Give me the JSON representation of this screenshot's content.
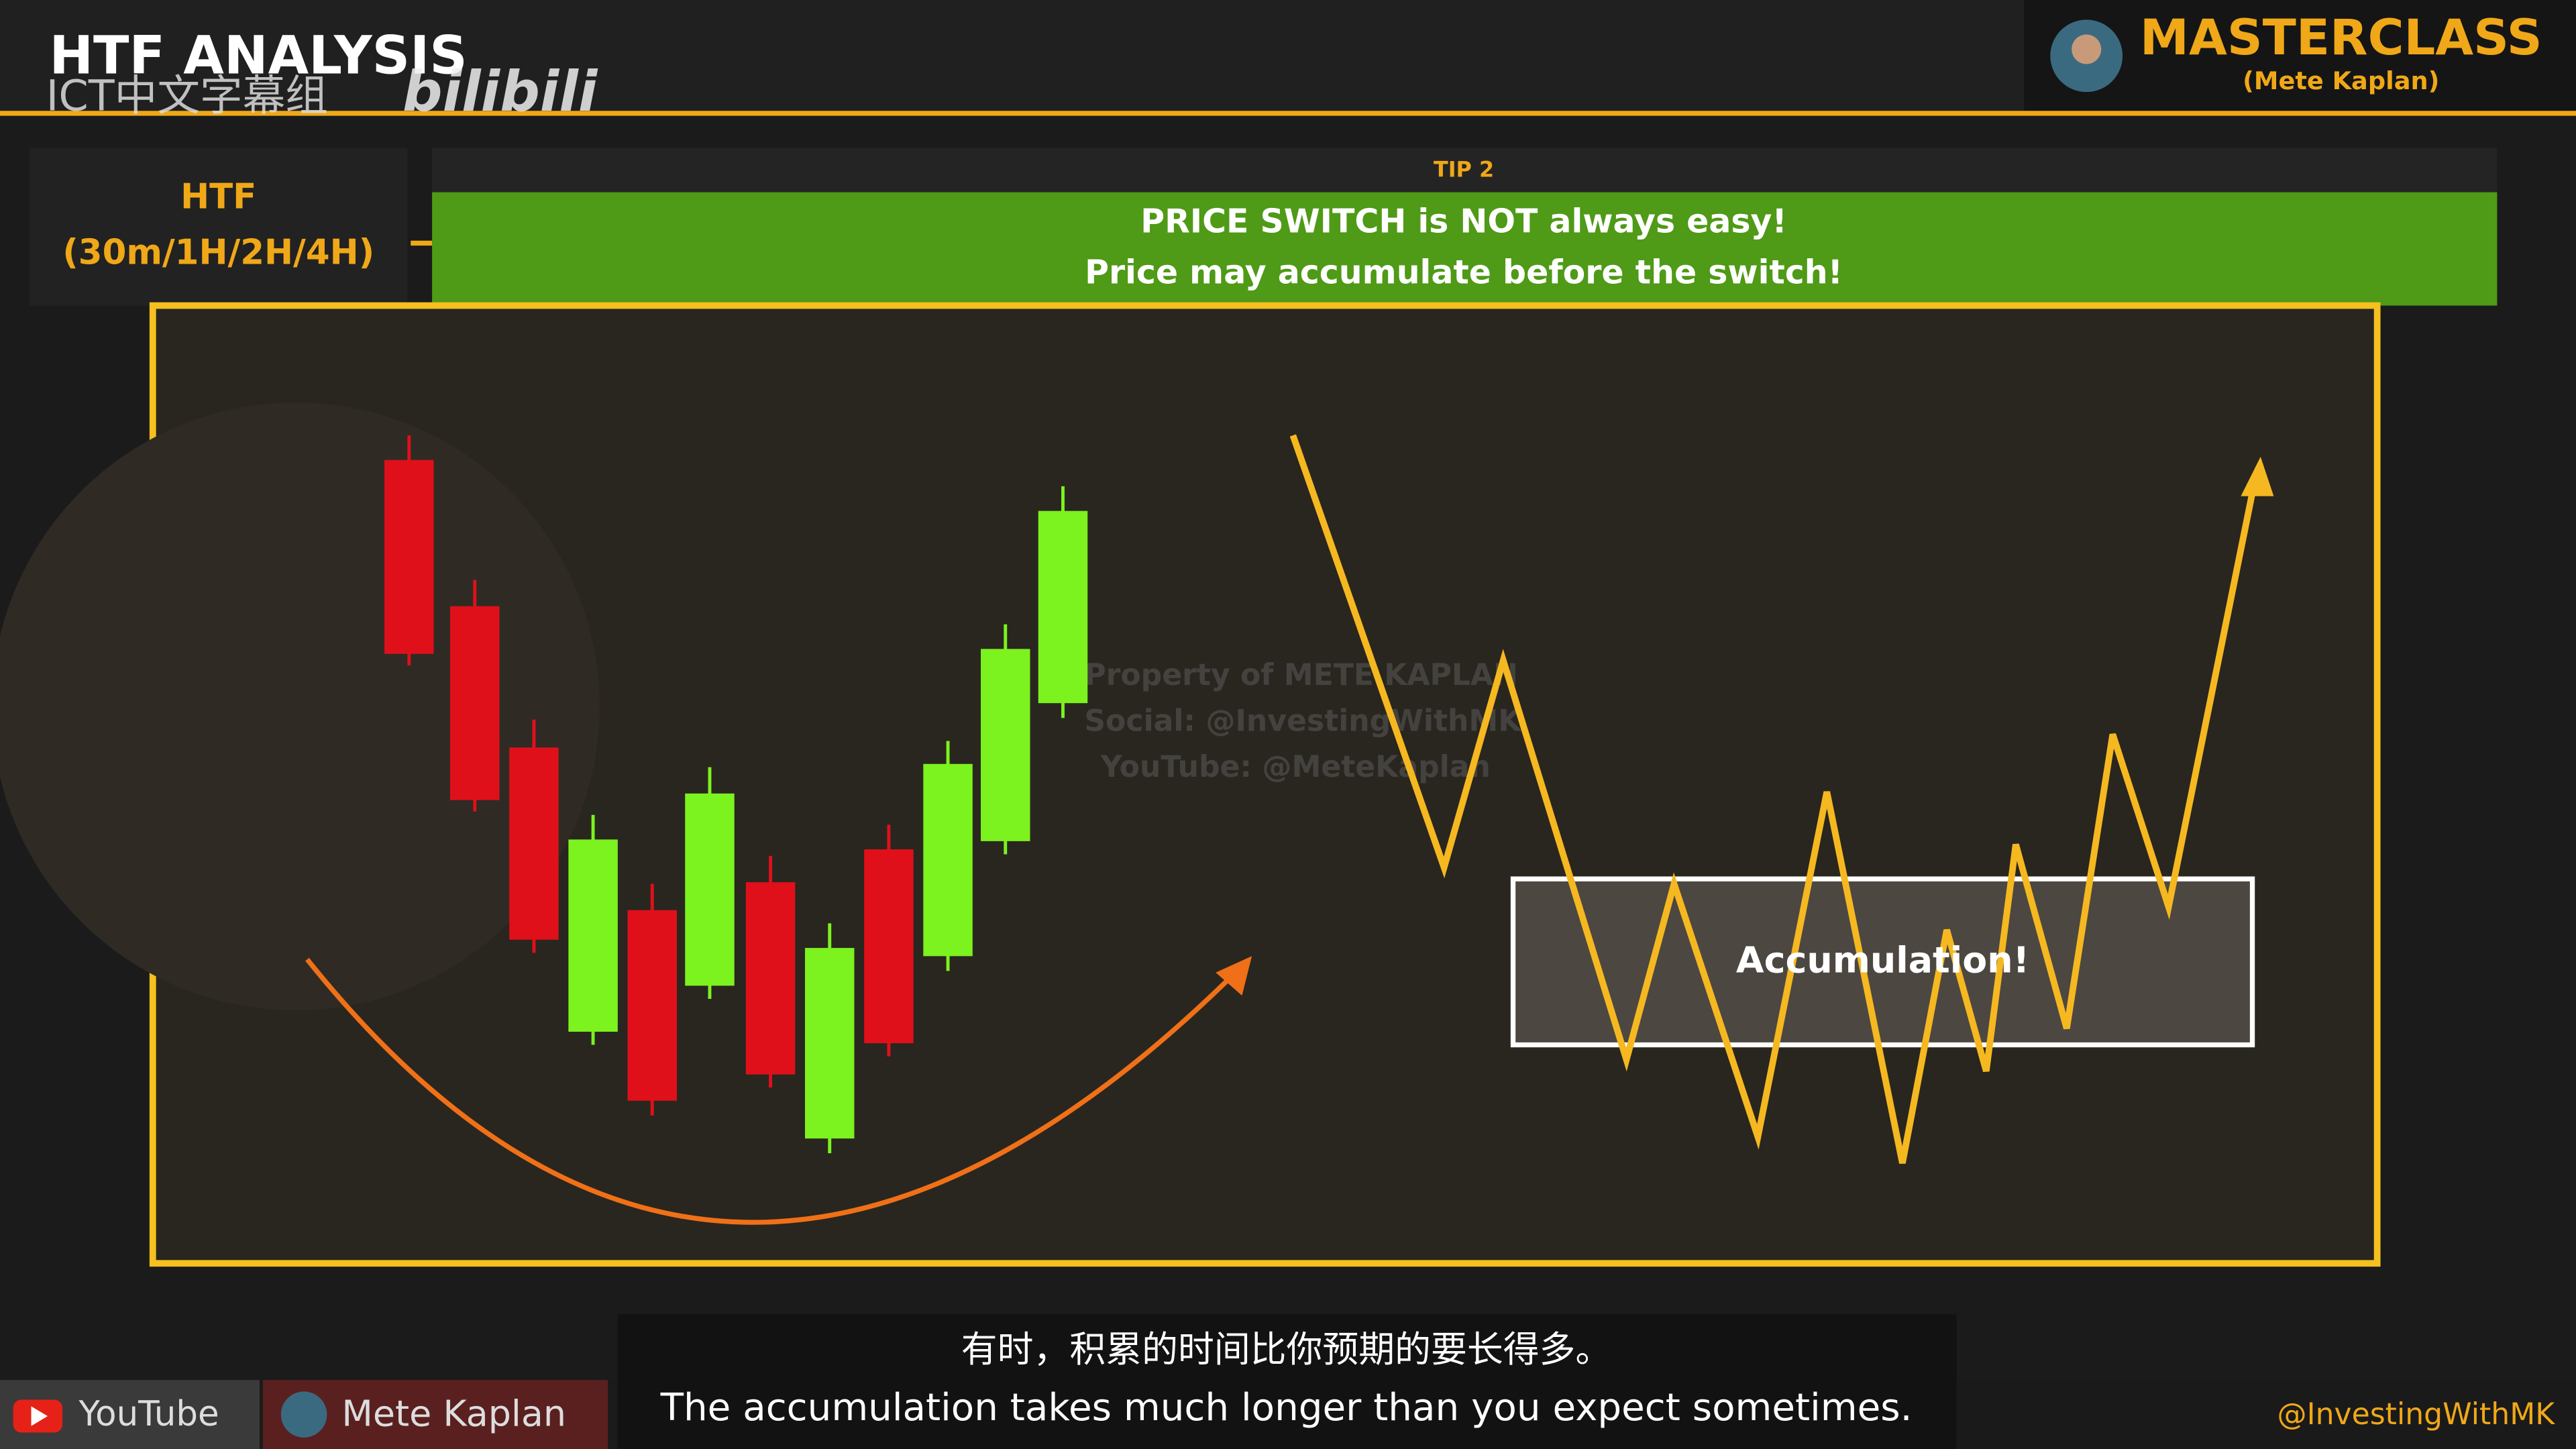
{
  "header": {
    "title": "HTF ANALYSIS",
    "watermark": "ICT中文字幕组",
    "logo": "bilibili",
    "brand": "MASTERCLASS",
    "author": "(Mete Kaplan)"
  },
  "timeframe": {
    "label": "HTF",
    "periods": "(30m/1H/2H/4H)"
  },
  "tip": {
    "label": "TIP 2",
    "line1": "PRICE SWITCH is NOT always easy!",
    "line2": "Price may accumulate before the switch!"
  },
  "chart_watermark": {
    "line1": "Property of METE KAPLAN",
    "line2": "Social: @InvestingWithMK",
    "line3": "YouTube: @MeteKaplan"
  },
  "accumulation_label": "Accumulation!",
  "subtitles": {
    "zh": "有时，积累的时间比你预期的要长得多。",
    "en": "The accumulation takes much longer than you expect sometimes."
  },
  "footer": {
    "platform": "YouTube",
    "channel": "Mete Kaplan",
    "handle": "@InvestingWithMK"
  }
}
